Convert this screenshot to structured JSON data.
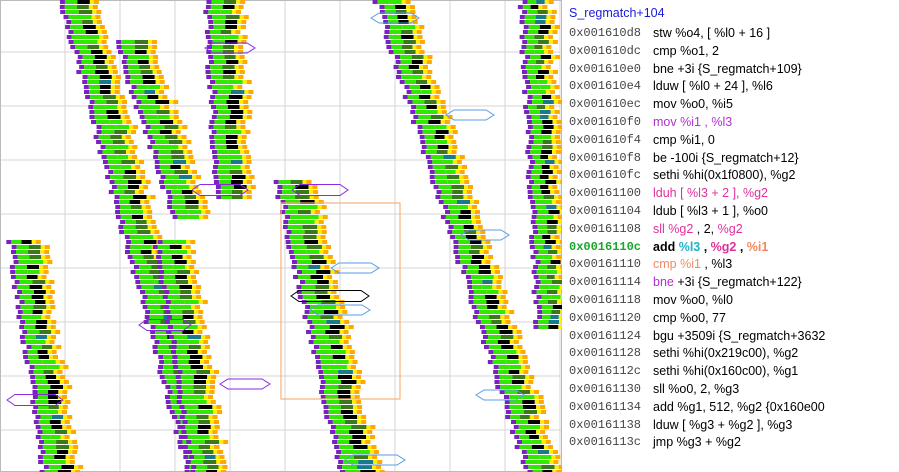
{
  "visualization": {
    "description_icons": {
      "bar_block": "instruction-block-icon",
      "hex": "branch-hexagon-icon"
    },
    "colors": {
      "purple": "#7b21c4",
      "green_light": "#33e800",
      "green_dark": "#3a7a1a",
      "yellow": "#ffee00",
      "orange": "#ffa800",
      "black": "#000000",
      "teal": "#1a7a8a",
      "violet_hex": "#8a2be2",
      "blue_hex": "#5a9be8",
      "orange_box": "#f5b27a"
    }
  },
  "listing": {
    "function_title": "S_regmatch+104",
    "rows": [
      {
        "addr": "0x001610d8",
        "parts": [
          {
            "t": "stw  %o4, [ %l0 + 16 ]",
            "c": "#000000"
          }
        ]
      },
      {
        "addr": "0x001610dc",
        "parts": [
          {
            "t": "cmp  %o1, 2",
            "c": "#000000"
          }
        ]
      },
      {
        "addr": "0x001610e0",
        "parts": [
          {
            "t": "bne  +3i  {S_regmatch+109}",
            "c": "#000000"
          }
        ]
      },
      {
        "addr": "0x001610e4",
        "parts": [
          {
            "t": "lduw  [ %l0 + 24 ], %l6",
            "c": "#000000"
          }
        ]
      },
      {
        "addr": "0x001610ec",
        "parts": [
          {
            "t": "mov  %o0, %i5",
            "c": "#000000"
          }
        ]
      },
      {
        "addr": "0x001610f0",
        "parts": [
          {
            "t": "mov  %i1 , %l3",
            "c": "#b030d0"
          }
        ]
      },
      {
        "addr": "0x001610f4",
        "parts": [
          {
            "t": "cmp  %i1, 0",
            "c": "#000000"
          }
        ]
      },
      {
        "addr": "0x001610f8",
        "parts": [
          {
            "t": "be  -100i  {S_regmatch+12}",
            "c": "#000000"
          }
        ]
      },
      {
        "addr": "0x001610fc",
        "parts": [
          {
            "t": "sethi  %hi(0x1f0800), %g2",
            "c": "#000000"
          }
        ]
      },
      {
        "addr": "0x00161100",
        "parts": [
          {
            "t": "lduh  [ %l3 + 2 ], %g2",
            "c": "#e0309a"
          }
        ]
      },
      {
        "addr": "0x00161104",
        "parts": [
          {
            "t": "ldub  [ %l3 + 1 ], %o0",
            "c": "#000000"
          }
        ]
      },
      {
        "addr": "0x00161108",
        "parts": [
          {
            "t": "sll  %g2",
            "c": "#e0309a"
          },
          {
            "t": " , 2, ",
            "c": "#000000"
          },
          {
            "t": "%g2",
            "c": "#e0309a"
          }
        ]
      },
      {
        "addr": "0x0016110c",
        "highlight": true,
        "parts": [
          {
            "t": "add  ",
            "c": "#000000"
          },
          {
            "t": "%l3",
            "c": "#20b0c8"
          },
          {
            "t": " , ",
            "c": "#000000"
          },
          {
            "t": "%g2",
            "c": "#e0309a"
          },
          {
            "t": " , ",
            "c": "#000000"
          },
          {
            "t": "%i1",
            "c": "#f08a60"
          }
        ]
      },
      {
        "addr": "0x00161110",
        "parts": [
          {
            "t": "cmp  %i1",
            "c": "#f08a60"
          },
          {
            "t": " , %l3",
            "c": "#000000"
          }
        ]
      },
      {
        "addr": "0x00161114",
        "parts": [
          {
            "t": "bne",
            "c": "#b030d0"
          },
          {
            "t": "  +3i  {S_regmatch+122}",
            "c": "#000000"
          }
        ]
      },
      {
        "addr": "0x00161118",
        "parts": [
          {
            "t": "mov  %o0, %l0",
            "c": "#000000"
          }
        ]
      },
      {
        "addr": "0x00161120",
        "parts": [
          {
            "t": "cmp  %o0, 77",
            "c": "#000000"
          }
        ]
      },
      {
        "addr": "0x00161124",
        "parts": [
          {
            "t": "bgu  +3509i  {S_regmatch+3632",
            "c": "#000000"
          }
        ]
      },
      {
        "addr": "0x00161128",
        "parts": [
          {
            "t": "sethi  %hi(0x219c00), %g2",
            "c": "#000000"
          }
        ]
      },
      {
        "addr": "0x0016112c",
        "parts": [
          {
            "t": "sethi  %hi(0x160c00), %g1",
            "c": "#000000"
          }
        ]
      },
      {
        "addr": "0x00161130",
        "parts": [
          {
            "t": "sll  %o0, 2, %g3",
            "c": "#000000"
          }
        ]
      },
      {
        "addr": "0x00161134",
        "parts": [
          {
            "t": "add  %g1, 512, %g2  {0x160e00",
            "c": "#000000"
          }
        ]
      },
      {
        "addr": "0x00161138",
        "parts": [
          {
            "t": "lduw  [ %g3 + %g2 ], %g3",
            "c": "#000000"
          }
        ]
      },
      {
        "addr": "0x0016113c",
        "parts": [
          {
            "t": "jmp  %g3 + %g2",
            "c": "#000000"
          }
        ]
      }
    ]
  }
}
